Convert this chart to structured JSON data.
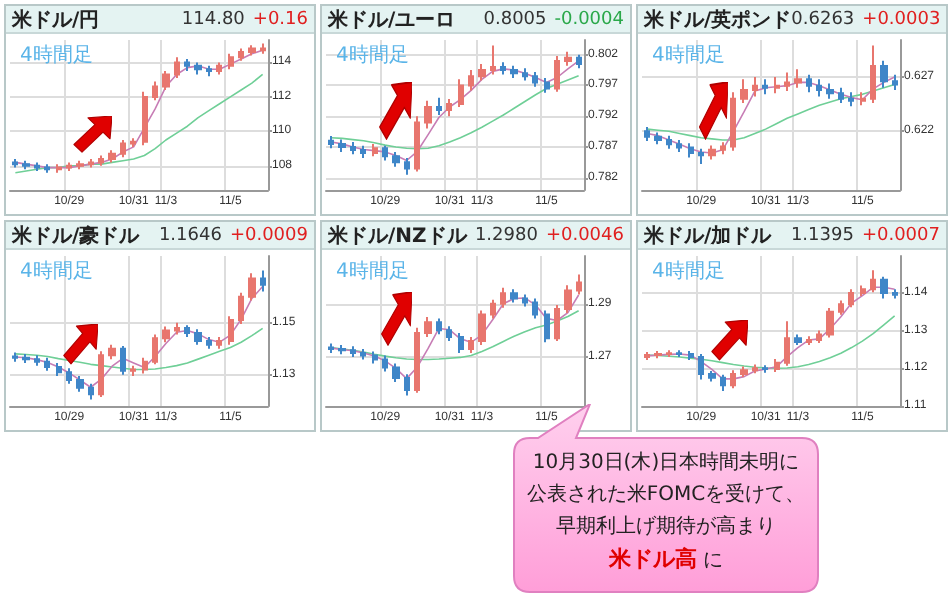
{
  "chart_data": [
    {
      "type": "candlestick",
      "title": "米ドル/円",
      "subtitle": "4時間足",
      "annotations": [
        "114.80",
        "+0.16"
      ],
      "categories": [
        null,
        null,
        null,
        null,
        null,
        "10/29",
        null,
        null,
        null,
        null,
        null,
        "10/31",
        null,
        null,
        "11/3",
        null,
        null,
        null,
        null,
        null,
        "11/5",
        null,
        null,
        null
      ],
      "ylim": [
        106.6,
        115.3
      ],
      "yticks": [
        108,
        110,
        112,
        114
      ],
      "grid": true,
      "series": [
        {
          "type": "line",
          "color": "#6fcf97",
          "values": [
            107.6,
            107.7,
            107.8,
            107.9,
            107.9,
            108.0,
            108.0,
            108.1,
            108.1,
            108.2,
            108.3,
            108.4,
            108.6,
            109.0,
            109.5,
            109.9,
            110.3,
            110.8,
            111.2,
            111.6,
            112.0,
            112.4,
            112.8,
            113.3
          ]
        },
        {
          "type": "line",
          "color": "#c77db5",
          "values": [
            108.2,
            108.1,
            108.0,
            107.9,
            107.9,
            107.9,
            108.0,
            108.1,
            108.2,
            108.4,
            108.8,
            109.1,
            110.2,
            111.3,
            112.6,
            113.3,
            113.7,
            113.8,
            113.6,
            113.6,
            113.9,
            114.2,
            114.5,
            114.7
          ]
        },
        {
          "type": "candlestick",
          "ohlc": [
            [
              108.2,
              108.4,
              107.9,
              108.1
            ],
            [
              108.1,
              108.3,
              107.8,
              108.0
            ],
            [
              108.0,
              108.2,
              107.7,
              107.9
            ],
            [
              107.9,
              108.1,
              107.6,
              107.8
            ],
            [
              107.8,
              108.1,
              107.6,
              107.9
            ],
            [
              107.9,
              108.2,
              107.7,
              108.0
            ],
            [
              108.0,
              108.3,
              107.8,
              108.1
            ],
            [
              108.1,
              108.4,
              107.9,
              108.2
            ],
            [
              108.2,
              108.6,
              108.0,
              108.4
            ],
            [
              108.4,
              108.9,
              108.2,
              108.7
            ],
            [
              108.7,
              109.5,
              108.5,
              109.3
            ],
            [
              109.3,
              109.6,
              109.1,
              109.4
            ],
            [
              109.4,
              112.3,
              109.2,
              112.0
            ],
            [
              112.0,
              112.9,
              111.8,
              112.6
            ],
            [
              112.6,
              113.5,
              112.4,
              113.3
            ],
            [
              113.3,
              114.3,
              113.1,
              114.0
            ],
            [
              114.0,
              114.2,
              113.5,
              113.8
            ],
            [
              113.8,
              114.0,
              113.3,
              113.6
            ],
            [
              113.6,
              113.8,
              113.2,
              113.5
            ],
            [
              113.5,
              114.0,
              113.3,
              113.8
            ],
            [
              113.8,
              114.5,
              113.6,
              114.3
            ],
            [
              114.3,
              114.8,
              114.1,
              114.6
            ],
            [
              114.6,
              115.0,
              114.4,
              114.8
            ],
            [
              114.7,
              115.1,
              114.5,
              114.8
            ]
          ],
          "colors": [
            "#3f86c8",
            "#3f86c8",
            "#3f86c8",
            "#3f86c8",
            "#e8766e",
            "#e8766e",
            "#e8766e",
            "#e8766e",
            "#e8766e",
            "#e8766e",
            "#e8766e",
            "#e8766e",
            "#e8766e",
            "#e8766e",
            "#e8766e",
            "#e8766e",
            "#3f86c8",
            "#3f86c8",
            "#3f86c8",
            "#e8766e",
            "#e8766e",
            "#e8766e",
            "#e8766e",
            "#e8766e"
          ]
        }
      ]
    },
    {
      "type": "candlestick",
      "title": "米ドル/ユーロ",
      "subtitle": "4時間足",
      "annotations": [
        "0.8005",
        "-0.0004"
      ],
      "categories": [
        null,
        null,
        null,
        null,
        null,
        "10/29",
        null,
        null,
        null,
        null,
        null,
        "10/31",
        null,
        null,
        "11/3",
        null,
        null,
        null,
        null,
        null,
        "11/5",
        null,
        null,
        null
      ],
      "ylim": [
        0.78,
        0.8044
      ],
      "yticks": [
        0.782,
        0.787,
        0.792,
        0.797,
        0.802
      ],
      "grid": true,
      "series": [
        {
          "type": "line",
          "color": "#6fcf97",
          "values": [
            0.7885,
            0.7884,
            0.7882,
            0.788,
            0.7877,
            0.7873,
            0.787,
            0.7868,
            0.7867,
            0.7868,
            0.7872,
            0.7878,
            0.7885,
            0.7893,
            0.7902,
            0.7912,
            0.7922,
            0.7933,
            0.7944,
            0.7955,
            0.7965,
            0.7972,
            0.7979,
            0.7986
          ]
        },
        {
          "type": "line",
          "color": "#c77db5",
          "values": [
            0.7878,
            0.7875,
            0.787,
            0.7866,
            0.7864,
            0.7862,
            0.7856,
            0.7848,
            0.7863,
            0.789,
            0.7918,
            0.7935,
            0.7947,
            0.7962,
            0.798,
            0.7993,
            0.7997,
            0.7995,
            0.799,
            0.7983,
            0.7975,
            0.7983,
            0.7997,
            0.801
          ]
        },
        {
          "type": "candlestick",
          "ohlc": [
            [
              0.788,
              0.7888,
              0.7868,
              0.7875
            ],
            [
              0.7875,
              0.7882,
              0.7862,
              0.787
            ],
            [
              0.787,
              0.7878,
              0.7858,
              0.7865
            ],
            [
              0.7865,
              0.7872,
              0.7852,
              0.786
            ],
            [
              0.786,
              0.7875,
              0.7855,
              0.7868
            ],
            [
              0.7868,
              0.7872,
              0.7848,
              0.7855
            ],
            [
              0.7855,
              0.7862,
              0.7838,
              0.7845
            ],
            [
              0.7845,
              0.7852,
              0.7825,
              0.7835
            ],
            [
              0.7835,
              0.792,
              0.783,
              0.791
            ],
            [
              0.791,
              0.7945,
              0.79,
              0.7935
            ],
            [
              0.7935,
              0.795,
              0.7922,
              0.793
            ],
            [
              0.793,
              0.7948,
              0.792,
              0.794
            ],
            [
              0.794,
              0.798,
              0.7935,
              0.797
            ],
            [
              0.797,
              0.7995,
              0.7962,
              0.7985
            ],
            [
              0.7985,
              0.8005,
              0.7978,
              0.7995
            ],
            [
              0.7995,
              0.8035,
              0.7988,
              0.8
            ],
            [
              0.8,
              0.8008,
              0.7988,
              0.7995
            ],
            [
              0.7995,
              0.8002,
              0.7982,
              0.799
            ],
            [
              0.799,
              0.7998,
              0.7978,
              0.7985
            ],
            [
              0.7985,
              0.7992,
              0.7968,
              0.7975
            ],
            [
              0.7975,
              0.7982,
              0.7958,
              0.7965
            ],
            [
              0.7965,
              0.8018,
              0.796,
              0.801
            ],
            [
              0.801,
              0.8025,
              0.8002,
              0.8015
            ],
            [
              0.8015,
              0.802,
              0.7998,
              0.8005
            ]
          ],
          "colors": [
            "#3f86c8",
            "#3f86c8",
            "#3f86c8",
            "#3f86c8",
            "#e8766e",
            "#3f86c8",
            "#3f86c8",
            "#3f86c8",
            "#e8766e",
            "#e8766e",
            "#3f86c8",
            "#e8766e",
            "#e8766e",
            "#e8766e",
            "#e8766e",
            "#e8766e",
            "#3f86c8",
            "#3f86c8",
            "#3f86c8",
            "#3f86c8",
            "#3f86c8",
            "#e8766e",
            "#e8766e",
            "#3f86c8"
          ]
        }
      ]
    },
    {
      "type": "candlestick",
      "title": "米ドル/英ポンド",
      "subtitle": "4時間足",
      "annotations": [
        "0.6263",
        "+0.0003"
      ],
      "categories": [
        null,
        null,
        null,
        null,
        null,
        "10/29",
        null,
        null,
        null,
        null,
        null,
        "10/31",
        null,
        null,
        "11/3",
        null,
        null,
        null,
        null,
        null,
        "11/5",
        null,
        null,
        null
      ],
      "ylim": [
        0.6166,
        0.6304
      ],
      "yticks": [
        0.622,
        0.627
      ],
      "grid": true,
      "series": [
        {
          "type": "line",
          "color": "#6fcf97",
          "values": [
            0.6222,
            0.6221,
            0.622,
            0.6218,
            0.6216,
            0.6214,
            0.6213,
            0.6212,
            0.6212,
            0.6214,
            0.6218,
            0.6222,
            0.6227,
            0.6232,
            0.6236,
            0.624,
            0.6244,
            0.6247,
            0.625,
            0.6252,
            0.6254,
            0.6257,
            0.626,
            0.6263
          ]
        },
        {
          "type": "line",
          "color": "#c77db5",
          "values": [
            0.6218,
            0.6216,
            0.6212,
            0.6208,
            0.6204,
            0.6201,
            0.62,
            0.6203,
            0.622,
            0.6238,
            0.6257,
            0.626,
            0.6261,
            0.6262,
            0.6265,
            0.6265,
            0.6262,
            0.6258,
            0.6254,
            0.6251,
            0.6249,
            0.6259,
            0.6265,
            0.627
          ]
        },
        {
          "type": "candlestick",
          "ohlc": [
            [
              0.622,
              0.6224,
              0.6211,
              0.6215
            ],
            [
              0.6215,
              0.6219,
              0.6208,
              0.6212
            ],
            [
              0.6212,
              0.6216,
              0.6204,
              0.6208
            ],
            [
              0.6208,
              0.6212,
              0.6201,
              0.6205
            ],
            [
              0.6205,
              0.6209,
              0.6196,
              0.62
            ],
            [
              0.62,
              0.6204,
              0.619,
              0.6198
            ],
            [
              0.6198,
              0.6207,
              0.6194,
              0.6203
            ],
            [
              0.6203,
              0.621,
              0.6199,
              0.6206
            ],
            [
              0.6206,
              0.6256,
              0.6202,
              0.625
            ],
            [
              0.625,
              0.6268,
              0.6246,
              0.6258
            ],
            [
              0.6258,
              0.627,
              0.6252,
              0.6262
            ],
            [
              0.6262,
              0.6268,
              0.6254,
              0.626
            ],
            [
              0.626,
              0.627,
              0.6255,
              0.6262
            ],
            [
              0.6262,
              0.6274,
              0.6257,
              0.6265
            ],
            [
              0.6265,
              0.6277,
              0.626,
              0.6268
            ],
            [
              0.6268,
              0.6272,
              0.6256,
              0.6262
            ],
            [
              0.6262,
              0.6268,
              0.6252,
              0.6258
            ],
            [
              0.6258,
              0.6264,
              0.625,
              0.6255
            ],
            [
              0.6255,
              0.626,
              0.6246,
              0.625
            ],
            [
              0.625,
              0.6256,
              0.6243,
              0.6248
            ],
            [
              0.6248,
              0.6256,
              0.6244,
              0.625
            ],
            [
              0.625,
              0.6299,
              0.6246,
              0.628
            ],
            [
              0.628,
              0.6285,
              0.626,
              0.6266
            ],
            [
              0.6266,
              0.6272,
              0.6258,
              0.6263
            ]
          ],
          "colors": [
            "#3f86c8",
            "#3f86c8",
            "#3f86c8",
            "#3f86c8",
            "#3f86c8",
            "#3f86c8",
            "#e8766e",
            "#e8766e",
            "#e8766e",
            "#e8766e",
            "#e8766e",
            "#3f86c8",
            "#e8766e",
            "#e8766e",
            "#e8766e",
            "#3f86c8",
            "#3f86c8",
            "#3f86c8",
            "#3f86c8",
            "#3f86c8",
            "#e8766e",
            "#e8766e",
            "#3f86c8",
            "#3f86c8"
          ]
        }
      ]
    },
    {
      "type": "candlestick",
      "title": "米ドル/豪ドル",
      "subtitle": "4時間足",
      "annotations": [
        "1.1646",
        "+0.0009"
      ],
      "categories": [
        null,
        null,
        null,
        null,
        null,
        "10/29",
        null,
        null,
        null,
        null,
        null,
        "10/31",
        null,
        null,
        "11/3",
        null,
        null,
        null,
        null,
        null,
        "11/5",
        null,
        null,
        null
      ],
      "ylim": [
        1.118,
        1.1756
      ],
      "yticks": [
        1.13,
        1.15
      ],
      "grid": true,
      "series": [
        {
          "type": "line",
          "color": "#6fcf97",
          "values": [
            1.138,
            1.1378,
            1.1375,
            1.137,
            1.1362,
            1.1355,
            1.1348,
            1.134,
            1.1335,
            1.133,
            1.1325,
            1.132,
            1.132,
            1.1322,
            1.1328,
            1.1335,
            1.1345,
            1.136,
            1.1375,
            1.139,
            1.1405,
            1.1425,
            1.145,
            1.1478
          ]
        },
        {
          "type": "line",
          "color": "#c77db5",
          "values": [
            1.1368,
            1.1365,
            1.1358,
            1.1347,
            1.133,
            1.1307,
            1.128,
            1.1252,
            1.1283,
            1.1333,
            1.1363,
            1.1345,
            1.1328,
            1.137,
            1.142,
            1.1463,
            1.147,
            1.1457,
            1.1435,
            1.1425,
            1.1452,
            1.1513,
            1.1593,
            1.1639
          ]
        },
        {
          "type": "candlestick",
          "ohlc": [
            [
              1.137,
              1.1385,
              1.135,
              1.1365
            ],
            [
              1.1365,
              1.138,
              1.1345,
              1.136
            ],
            [
              1.136,
              1.1375,
              1.1335,
              1.135
            ],
            [
              1.135,
              1.1365,
              1.1315,
              1.133
            ],
            [
              1.133,
              1.1345,
              1.1295,
              1.131
            ],
            [
              1.131,
              1.1325,
              1.1265,
              1.128
            ],
            [
              1.128,
              1.1295,
              1.1235,
              1.125
            ],
            [
              1.125,
              1.1265,
              1.1205,
              1.1225
            ],
            [
              1.1225,
              1.139,
              1.1215,
              1.1375
            ],
            [
              1.1375,
              1.1415,
              1.136,
              1.14
            ],
            [
              1.14,
              1.141,
              1.13,
              1.1315
            ],
            [
              1.1315,
              1.1335,
              1.1295,
              1.132
            ],
            [
              1.132,
              1.1365,
              1.1305,
              1.135
            ],
            [
              1.135,
              1.1455,
              1.134,
              1.144
            ],
            [
              1.144,
              1.1485,
              1.1425,
              1.147
            ],
            [
              1.147,
              1.15,
              1.1455,
              1.148
            ],
            [
              1.148,
              1.149,
              1.1445,
              1.146
            ],
            [
              1.146,
              1.1475,
              1.1415,
              1.143
            ],
            [
              1.143,
              1.1445,
              1.14,
              1.1415
            ],
            [
              1.1415,
              1.1445,
              1.14,
              1.143
            ],
            [
              1.143,
              1.1525,
              1.1415,
              1.151
            ],
            [
              1.151,
              1.1615,
              1.1495,
              1.16
            ],
            [
              1.16,
              1.169,
              1.1585,
              1.167
            ],
            [
              1.167,
              1.17,
              1.162,
              1.1646
            ]
          ],
          "colors": [
            "#3f86c8",
            "#3f86c8",
            "#3f86c8",
            "#3f86c8",
            "#3f86c8",
            "#3f86c8",
            "#3f86c8",
            "#3f86c8",
            "#e8766e",
            "#e8766e",
            "#3f86c8",
            "#e8766e",
            "#e8766e",
            "#e8766e",
            "#e8766e",
            "#e8766e",
            "#3f86c8",
            "#3f86c8",
            "#3f86c8",
            "#e8766e",
            "#e8766e",
            "#e8766e",
            "#e8766e",
            "#3f86c8"
          ]
        }
      ]
    },
    {
      "type": "candlestick",
      "title": "米ドル/NZドル",
      "subtitle": "4時間足",
      "annotations": [
        "1.2980",
        "+0.0046"
      ],
      "categories": [
        null,
        null,
        null,
        null,
        null,
        "10/29",
        null,
        null,
        null,
        null,
        null,
        "10/31",
        null,
        null,
        "11/3",
        null,
        null,
        null,
        null,
        null,
        "11/5",
        null,
        null,
        null
      ],
      "ylim": [
        1.2515,
        1.308
      ],
      "yticks": [
        1.27,
        1.29
      ],
      "grid": true,
      "series": [
        {
          "type": "line",
          "color": "#6fcf97",
          "values": [
            1.2735,
            1.273,
            1.2725,
            1.2718,
            1.271,
            1.2703,
            1.2697,
            1.2692,
            1.269,
            1.269,
            1.2692,
            1.2695,
            1.2698,
            1.2705,
            1.272,
            1.2738,
            1.2758,
            1.2778,
            1.2795,
            1.281,
            1.282,
            1.2835,
            1.2852,
            1.2874
          ]
        },
        {
          "type": "line",
          "color": "#c77db5",
          "values": [
            1.2733,
            1.2728,
            1.2723,
            1.2715,
            1.2703,
            1.2685,
            1.2657,
            1.2618,
            1.2662,
            1.2732,
            1.2807,
            1.2802,
            1.2768,
            1.2755,
            1.2783,
            1.284,
            1.29,
            1.292,
            1.2922,
            1.2895,
            1.2845,
            1.2837,
            1.2867,
            1.2933
          ]
        },
        {
          "type": "candlestick",
          "ohlc": [
            [
              1.2735,
              1.275,
              1.2715,
              1.273
            ],
            [
              1.273,
              1.2745,
              1.271,
              1.2725
            ],
            [
              1.2725,
              1.274,
              1.27,
              1.2715
            ],
            [
              1.2715,
              1.273,
              1.269,
              1.2705
            ],
            [
              1.2705,
              1.272,
              1.2675,
              1.269
            ],
            [
              1.269,
              1.2705,
              1.2645,
              1.266
            ],
            [
              1.266,
              1.2675,
              1.2605,
              1.262
            ],
            [
              1.262,
              1.2635,
              1.2555,
              1.2575
            ],
            [
              1.2575,
              1.281,
              1.2565,
              1.279
            ],
            [
              1.279,
              1.285,
              1.2775,
              1.283
            ],
            [
              1.283,
              1.2845,
              1.2785,
              1.28
            ],
            [
              1.28,
              1.2815,
              1.276,
              1.2775
            ],
            [
              1.2775,
              1.279,
              1.2715,
              1.273
            ],
            [
              1.273,
              1.2775,
              1.2715,
              1.276
            ],
            [
              1.276,
              1.2875,
              1.2745,
              1.286
            ],
            [
              1.286,
              1.2915,
              1.2845,
              1.29
            ],
            [
              1.29,
              1.296,
              1.2885,
              1.294
            ],
            [
              1.294,
              1.2955,
              1.2905,
              1.292
            ],
            [
              1.292,
              1.2935,
              1.289,
              1.2905
            ],
            [
              1.2905,
              1.292,
              1.2845,
              1.286
            ],
            [
              1.286,
              1.2875,
              1.2755,
              1.277
            ],
            [
              1.277,
              1.2895,
              1.276,
              1.288
            ],
            [
              1.288,
              1.297,
              1.2865,
              1.295
            ],
            [
              1.295,
              1.301,
              1.2935,
              1.298
            ]
          ],
          "colors": [
            "#3f86c8",
            "#3f86c8",
            "#3f86c8",
            "#3f86c8",
            "#3f86c8",
            "#3f86c8",
            "#3f86c8",
            "#3f86c8",
            "#e8766e",
            "#e8766e",
            "#3f86c8",
            "#3f86c8",
            "#3f86c8",
            "#e8766e",
            "#e8766e",
            "#e8766e",
            "#e8766e",
            "#3f86c8",
            "#3f86c8",
            "#3f86c8",
            "#3f86c8",
            "#e8766e",
            "#e8766e",
            "#e8766e"
          ]
        }
      ]
    },
    {
      "type": "candlestick",
      "title": "米ドル/加ドル",
      "subtitle": "4時間足",
      "annotations": [
        "1.1395",
        "+0.0007"
      ],
      "categories": [
        null,
        null,
        null,
        null,
        null,
        "10/29",
        null,
        null,
        null,
        null,
        null,
        "10/31",
        null,
        null,
        "11/3",
        null,
        null,
        null,
        null,
        null,
        "11/5",
        null,
        null,
        null
      ],
      "ylim": [
        1.11,
        1.1498
      ],
      "yticks": [
        1.11,
        1.12,
        1.13,
        1.14
      ],
      "grid": true,
      "series": [
        {
          "type": "line",
          "color": "#6fcf97",
          "values": [
            1.1235,
            1.1234,
            1.1232,
            1.123,
            1.1227,
            1.1224,
            1.122,
            1.1215,
            1.121,
            1.1206,
            1.1203,
            1.1201,
            1.12,
            1.1201,
            1.1204,
            1.121,
            1.1218,
            1.1228,
            1.124,
            1.1255,
            1.1272,
            1.1292,
            1.1315,
            1.1339
          ]
        },
        {
          "type": "line",
          "color": "#c77db5",
          "values": [
            1.1233,
            1.1235,
            1.1237,
            1.1238,
            1.1235,
            1.1218,
            1.1197,
            1.1172,
            1.1172,
            1.1178,
            1.1193,
            1.1198,
            1.1204,
            1.1231,
            1.1255,
            1.1275,
            1.1278,
            1.1305,
            1.1337,
            1.1373,
            1.1393,
            1.1415,
            1.1415,
            1.141
          ]
        },
        {
          "type": "candlestick",
          "ohlc": [
            [
              1.123,
              1.1243,
              1.1222,
              1.1235
            ],
            [
              1.1235,
              1.1246,
              1.1227,
              1.1238
            ],
            [
              1.1238,
              1.1248,
              1.123,
              1.124
            ],
            [
              1.124,
              1.1248,
              1.123,
              1.1238
            ],
            [
              1.1238,
              1.1246,
              1.1222,
              1.123
            ],
            [
              1.123,
              1.1238,
              1.117,
              1.1185
            ],
            [
              1.1185,
              1.1193,
              1.1165,
              1.1175
            ],
            [
              1.1175,
              1.1183,
              1.114,
              1.1155
            ],
            [
              1.1155,
              1.1195,
              1.1147,
              1.1185
            ],
            [
              1.1185,
              1.1205,
              1.1177,
              1.1195
            ],
            [
              1.1195,
              1.121,
              1.1187,
              1.12
            ],
            [
              1.12,
              1.1208,
              1.1188,
              1.1198
            ],
            [
              1.1198,
              1.1225,
              1.119,
              1.1215
            ],
            [
              1.1215,
              1.1325,
              1.1207,
              1.128
            ],
            [
              1.128,
              1.129,
              1.1262,
              1.127
            ],
            [
              1.127,
              1.1285,
              1.1262,
              1.1275
            ],
            [
              1.1275,
              1.13,
              1.1267,
              1.129
            ],
            [
              1.129,
              1.136,
              1.1282,
              1.135
            ],
            [
              1.135,
              1.138,
              1.1342,
              1.137
            ],
            [
              1.137,
              1.141,
              1.1362,
              1.14
            ],
            [
              1.14,
              1.142,
              1.1392,
              1.141
            ],
            [
              1.141,
              1.146,
              1.1402,
              1.1435
            ],
            [
              1.1435,
              1.1443,
              1.1385,
              1.14
            ],
            [
              1.14,
              1.141,
              1.1385,
              1.1395
            ]
          ],
          "colors": [
            "#e8766e",
            "#e8766e",
            "#e8766e",
            "#3f86c8",
            "#3f86c8",
            "#3f86c8",
            "#3f86c8",
            "#3f86c8",
            "#e8766e",
            "#e8766e",
            "#e8766e",
            "#3f86c8",
            "#e8766e",
            "#e8766e",
            "#3f86c8",
            "#e8766e",
            "#e8766e",
            "#e8766e",
            "#e8766e",
            "#e8766e",
            "#e8766e",
            "#e8766e",
            "#3f86c8",
            "#3f86c8"
          ]
        }
      ]
    },
    {
      "type": "other",
      "annotations": [
        "10月30日(木)日本時間未明に",
        "公表された米FOMCを受けて、",
        "早期利上げ期待が高まり",
        "米ドル高",
        " に"
      ]
    }
  ]
}
